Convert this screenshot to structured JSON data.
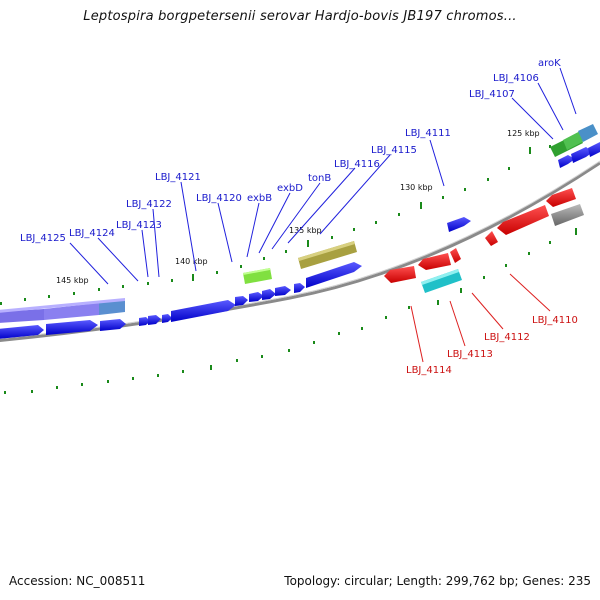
{
  "title": "Leptospira borgpetersenii serovar Hardjo-bovis JB197 chromos...",
  "footer": {
    "accession": "Accession: NC_008511",
    "stats": "Topology: circular; Length: 299,762 bp; Genes: 235"
  },
  "scale_labels": [
    "145 kbp",
    "140 kbp",
    "135 kbp",
    "130 kbp",
    "125 kbp"
  ],
  "genes_top": [
    "LBJ_4125",
    "LBJ_4124",
    "LBJ_4123",
    "LBJ_4122",
    "LBJ_4121",
    "LBJ_4120",
    "exbB",
    "exbD",
    "tonB",
    "LBJ_4116",
    "LBJ_4115",
    "LBJ_4111",
    "LBJ_4107",
    "LBJ_4106",
    "aroK"
  ],
  "genes_bottom": [
    "LBJ_4114",
    "LBJ_4113",
    "LBJ_4112",
    "LBJ_4110"
  ],
  "colors": {
    "forward_cds": "#1010e0",
    "reverse_cds": "#e01010",
    "backbone": "#888888",
    "label_blue": "#1a1acc",
    "label_red": "#cc1111",
    "tick_green": "#1a8a1a"
  }
}
